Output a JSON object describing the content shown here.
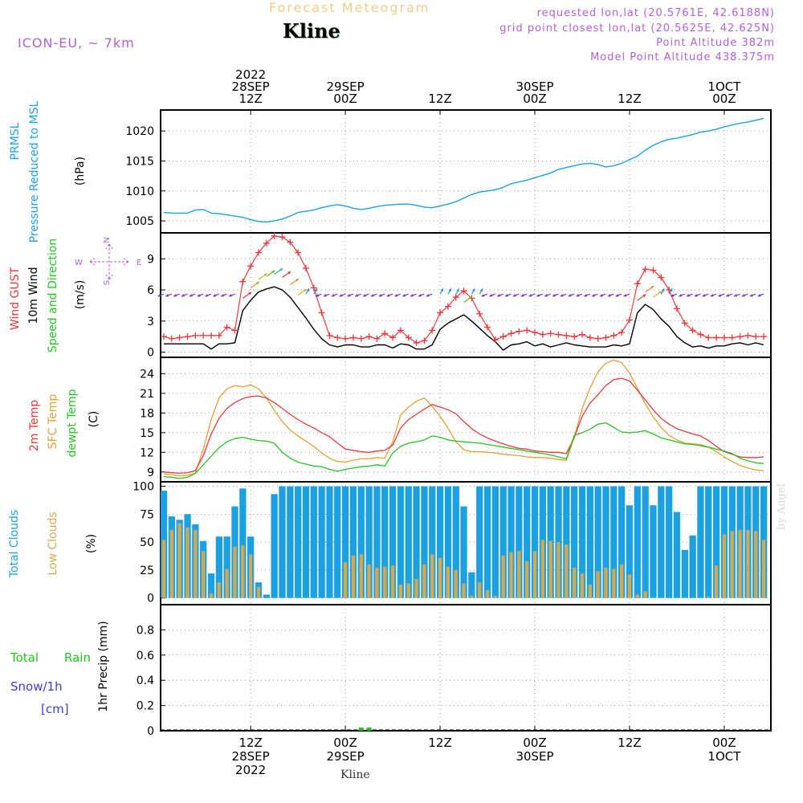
{
  "header": {
    "title": "Forecast Meteogram",
    "location": "Kline",
    "model": "ICON-EU, ~ 7km",
    "requested": "requested lon,lat (20.5761E, 42.6188N)",
    "grid_point": "grid point closest lon,lat (20.5625E, 42.625N)",
    "point_altitude": "Point Altitude 382m",
    "model_altitude": "Model Point Altitude 438.375m"
  },
  "footer": {
    "location": "Kline"
  },
  "watermark": "by Angel",
  "colors": {
    "pressure": "#1ba1e2",
    "gust": "#e8383b",
    "wind": "#000000",
    "temp2m": "#e8383b",
    "sfc_temp": "#e2a032",
    "dewpoint": "#22c422",
    "total_clouds": "#1ba1e2",
    "low_clouds": "#d4a850",
    "rain": "#22c422",
    "snow": "#3a3ae0",
    "arrows": "#7b2fd6",
    "label_purple": "#b05fd6"
  },
  "chart_data": [
    {
      "type": "line",
      "panel": "pressure",
      "ylabel": [
        "PRMSL",
        "Pressure Reduced to MSL",
        "(hPa)"
      ],
      "ylim": [
        1003,
        1023.5
      ],
      "yticks": [
        1005,
        1010,
        1015,
        1020
      ],
      "x_hours": [
        0,
        1,
        2,
        3,
        4,
        5,
        6,
        7,
        8,
        9,
        10,
        11,
        12,
        13,
        14,
        15,
        16,
        17,
        18,
        19,
        20,
        21,
        22,
        23,
        24,
        25,
        26,
        27,
        28,
        29,
        30,
        31,
        32,
        33,
        34,
        35,
        36,
        37,
        38,
        39,
        40,
        41,
        42,
        43,
        44,
        45,
        46,
        47,
        48,
        49,
        50,
        51,
        52,
        53,
        54,
        55,
        56,
        57,
        58,
        59,
        60,
        61,
        62,
        63,
        64,
        65,
        66,
        67,
        68,
        69,
        70,
        71,
        72,
        73,
        74,
        75,
        76
      ],
      "series": [
        {
          "name": "PRMSL",
          "values": [
            1006.4,
            1006.3,
            1006.3,
            1006.3,
            1006.8,
            1006.9,
            1006.3,
            1006.2,
            1006.0,
            1005.8,
            1005.6,
            1005.2,
            1004.9,
            1004.8,
            1005.0,
            1005.3,
            1005.8,
            1006.4,
            1006.6,
            1006.8,
            1007.2,
            1007.5,
            1007.7,
            1007.5,
            1007.1,
            1006.9,
            1007.1,
            1007.4,
            1007.6,
            1007.7,
            1007.8,
            1007.8,
            1007.6,
            1007.3,
            1007.2,
            1007.5,
            1007.8,
            1008.2,
            1008.8,
            1009.4,
            1009.8,
            1010.0,
            1010.2,
            1010.6,
            1011.2,
            1011.5,
            1011.8,
            1012.2,
            1012.6,
            1013.0,
            1013.6,
            1013.9,
            1014.2,
            1014.5,
            1014.6,
            1014.4,
            1014.0,
            1014.2,
            1014.6,
            1015.2,
            1015.8,
            1016.8,
            1017.6,
            1018.2,
            1018.6,
            1018.8,
            1019.1,
            1019.4,
            1019.8,
            1020.0,
            1020.3,
            1020.7,
            1021.0,
            1021.3,
            1021.5,
            1021.8,
            1022.1
          ]
        }
      ]
    },
    {
      "type": "line",
      "panel": "wind",
      "ylabel": [
        "Wind GUST",
        "10m Wind",
        "Speed and Direction",
        "(m/s)"
      ],
      "compass": {
        "north": "N",
        "south": "S",
        "west": "W",
        "east": "E"
      },
      "ylim": [
        -0.5,
        11.5
      ],
      "yticks": [
        0,
        3,
        6,
        9
      ],
      "x_hours": [
        0,
        1,
        2,
        3,
        4,
        5,
        6,
        7,
        8,
        9,
        10,
        11,
        12,
        13,
        14,
        15,
        16,
        17,
        18,
        19,
        20,
        21,
        22,
        23,
        24,
        25,
        26,
        27,
        28,
        29,
        30,
        31,
        32,
        33,
        34,
        35,
        36,
        37,
        38,
        39,
        40,
        41,
        42,
        43,
        44,
        45,
        46,
        47,
        48,
        49,
        50,
        51,
        52,
        53,
        54,
        55,
        56,
        57,
        58,
        59,
        60,
        61,
        62,
        63,
        64,
        65,
        66,
        67,
        68,
        69,
        70,
        71,
        72,
        73,
        74,
        75,
        76
      ],
      "series": [
        {
          "name": "Wind GUST",
          "values": [
            1.5,
            1.3,
            1.4,
            1.5,
            1.6,
            1.6,
            1.6,
            1.6,
            2.4,
            2.1,
            6.8,
            8.3,
            9.6,
            10.5,
            11.2,
            11.1,
            10.6,
            9.6,
            8.1,
            6.2,
            3.8,
            1.6,
            1.4,
            1.3,
            1.4,
            1.3,
            1.5,
            1.3,
            1.8,
            1.4,
            2.1,
            1.4,
            0.9,
            1.1,
            2.1,
            3.8,
            4.4,
            5.3,
            5.9,
            5.2,
            3.7,
            2.4,
            1.2,
            1.5,
            1.8,
            2.0,
            2.1,
            1.9,
            1.7,
            1.8,
            1.7,
            1.6,
            1.5,
            1.7,
            1.4,
            1.3,
            1.4,
            1.6,
            1.9,
            3.1,
            6.6,
            8.0,
            7.9,
            7.2,
            6.0,
            4.2,
            2.8,
            2.1,
            1.7,
            1.4,
            1.4,
            1.4,
            1.4,
            1.5,
            1.6,
            1.5,
            1.5
          ]
        },
        {
          "name": "10m Wind",
          "values": [
            0.8,
            0.8,
            0.8,
            0.8,
            0.8,
            0.8,
            0.3,
            0.8,
            0.8,
            0.9,
            4.0,
            5.0,
            5.8,
            6.1,
            6.3,
            6.0,
            5.3,
            4.3,
            3.3,
            2.2,
            1.3,
            0.7,
            0.5,
            0.7,
            0.7,
            0.5,
            0.5,
            0.7,
            0.7,
            0.4,
            0.8,
            0.7,
            0.3,
            0.3,
            0.7,
            2.2,
            2.8,
            3.2,
            3.6,
            3.0,
            2.3,
            1.6,
            1.0,
            0.2,
            0.7,
            0.8,
            1.0,
            0.6,
            0.8,
            0.5,
            0.7,
            0.9,
            0.7,
            0.6,
            0.5,
            0.5,
            0.5,
            0.7,
            0.6,
            0.8,
            3.8,
            4.6,
            4.1,
            3.2,
            2.5,
            1.5,
            0.9,
            0.5,
            0.6,
            0.4,
            0.6,
            0.6,
            0.8,
            0.9,
            0.7,
            0.9,
            0.7
          ]
        }
      ]
    },
    {
      "type": "line",
      "panel": "temperature",
      "ylabel": [
        "2m Temp",
        "SFC Temp",
        "dewpt Temp",
        "(C)"
      ],
      "ylim": [
        7.5,
        26.5
      ],
      "yticks": [
        9,
        12,
        15,
        18,
        21,
        24
      ],
      "x_hours": [
        0,
        1,
        2,
        3,
        4,
        5,
        6,
        7,
        8,
        9,
        10,
        11,
        12,
        13,
        14,
        15,
        16,
        17,
        18,
        19,
        20,
        21,
        22,
        23,
        24,
        25,
        26,
        27,
        28,
        29,
        30,
        31,
        32,
        33,
        34,
        35,
        36,
        37,
        38,
        39,
        40,
        41,
        42,
        43,
        44,
        45,
        46,
        47,
        48,
        49,
        50,
        51,
        52,
        53,
        54,
        55,
        56,
        57,
        58,
        59,
        60,
        61,
        62,
        63,
        64,
        65,
        66,
        67,
        68,
        69,
        70,
        71,
        72,
        73,
        74,
        75,
        76
      ],
      "series": [
        {
          "name": "2m Temp",
          "values": [
            9.0,
            8.9,
            8.8,
            8.9,
            9.2,
            11.5,
            14.8,
            17.2,
            18.7,
            19.6,
            20.2,
            20.5,
            20.6,
            20.3,
            19.6,
            18.7,
            17.8,
            17.0,
            16.3,
            15.7,
            15.0,
            14.4,
            13.4,
            12.5,
            12.3,
            12.1,
            12.0,
            12.2,
            12.3,
            13.1,
            15.7,
            17.0,
            17.8,
            18.6,
            19.3,
            18.9,
            18.5,
            17.9,
            16.7,
            15.6,
            14.8,
            14.2,
            13.7,
            13.3,
            12.9,
            12.6,
            12.5,
            12.2,
            12.1,
            12.0,
            12.0,
            11.8,
            14.3,
            17.5,
            19.5,
            20.8,
            22.2,
            23.1,
            23.3,
            22.9,
            21.5,
            20.0,
            18.5,
            17.2,
            16.3,
            15.6,
            15.2,
            14.8,
            14.5,
            13.8,
            12.9,
            12.1,
            11.7,
            11.3,
            11.2,
            11.2,
            11.3
          ]
        },
        {
          "name": "SFC Temp",
          "values": [
            8.7,
            8.6,
            8.4,
            8.5,
            8.8,
            12.5,
            17.0,
            20.3,
            21.7,
            22.2,
            22.0,
            22.3,
            21.7,
            20.3,
            18.4,
            16.7,
            15.4,
            14.5,
            13.7,
            12.9,
            11.9,
            11.1,
            10.6,
            10.5,
            10.8,
            11.0,
            11.0,
            11.2,
            11.1,
            13.6,
            17.7,
            18.9,
            19.8,
            20.3,
            19.0,
            17.5,
            15.7,
            13.6,
            12.4,
            12.1,
            12.1,
            12.0,
            11.9,
            11.7,
            11.6,
            11.5,
            11.3,
            11.2,
            11.2,
            11.1,
            10.9,
            10.8,
            14.3,
            18.7,
            21.8,
            24.3,
            25.6,
            26.1,
            25.7,
            24.1,
            21.8,
            19.4,
            17.4,
            15.8,
            14.6,
            13.9,
            13.4,
            13.3,
            13.2,
            12.8,
            12.1,
            11.3,
            10.6,
            10.0,
            9.6,
            9.3,
            9.2
          ]
        },
        {
          "name": "dewpt Temp",
          "values": [
            8.3,
            8.2,
            8.0,
            8.2,
            8.8,
            10.1,
            11.4,
            12.7,
            13.6,
            14.1,
            14.3,
            14.0,
            13.8,
            13.7,
            13.4,
            12.0,
            11.1,
            10.5,
            10.2,
            9.9,
            9.8,
            9.4,
            9.1,
            9.4,
            9.6,
            9.8,
            9.9,
            10.1,
            9.9,
            11.9,
            12.9,
            13.4,
            13.6,
            13.9,
            14.5,
            14.3,
            13.9,
            13.7,
            13.6,
            13.5,
            13.4,
            13.2,
            13.0,
            12.8,
            12.6,
            12.4,
            12.2,
            12.0,
            11.8,
            11.6,
            11.3,
            11.0,
            14.6,
            15.0,
            15.5,
            16.3,
            16.5,
            15.8,
            15.1,
            15.0,
            15.1,
            15.3,
            14.8,
            14.2,
            13.9,
            13.6,
            13.3,
            13.2,
            13.0,
            12.8,
            12.5,
            12.2,
            11.8,
            11.1,
            10.7,
            10.4,
            10.3
          ]
        }
      ]
    },
    {
      "type": "bar",
      "panel": "clouds",
      "ylabel": [
        "Total Clouds",
        "Low Clouds",
        "(%)"
      ],
      "ylim": [
        -6,
        104
      ],
      "yticks": [
        0,
        25,
        50,
        75,
        100
      ],
      "x_hours": [
        0,
        1,
        2,
        3,
        4,
        5,
        6,
        7,
        8,
        9,
        10,
        11,
        12,
        13,
        14,
        15,
        16,
        17,
        18,
        19,
        20,
        21,
        22,
        23,
        24,
        25,
        26,
        27,
        28,
        29,
        30,
        31,
        32,
        33,
        34,
        35,
        36,
        37,
        38,
        39,
        40,
        41,
        42,
        43,
        44,
        45,
        46,
        47,
        48,
        49,
        50,
        51,
        52,
        53,
        54,
        55,
        56,
        57,
        58,
        59,
        60,
        61,
        62,
        63,
        64,
        65,
        66,
        67,
        68,
        69,
        70,
        71,
        72,
        73,
        74,
        75,
        76
      ],
      "series": [
        {
          "name": "Total Clouds",
          "values": [
            96,
            73,
            70,
            75,
            66,
            51,
            22,
            55,
            55,
            82,
            98,
            55,
            14,
            3,
            93,
            100,
            100,
            100,
            100,
            100,
            100,
            100,
            100,
            100,
            100,
            100,
            100,
            100,
            100,
            100,
            100,
            100,
            100,
            100,
            100,
            100,
            100,
            100,
            82,
            23,
            100,
            100,
            100,
            100,
            100,
            100,
            100,
            100,
            100,
            100,
            100,
            100,
            100,
            100,
            100,
            100,
            100,
            100,
            100,
            83,
            100,
            100,
            83,
            100,
            100,
            77,
            43,
            56,
            100,
            100,
            100,
            100,
            100,
            100,
            100,
            100,
            100
          ]
        },
        {
          "name": "Low Clouds",
          "values": [
            52,
            61,
            67,
            63,
            61,
            42,
            4,
            14,
            26,
            46,
            47,
            39,
            10,
            0,
            0,
            0,
            0,
            0,
            0,
            0,
            0,
            0,
            0,
            32,
            38,
            39,
            30,
            27,
            28,
            29,
            12,
            13,
            17,
            30,
            39,
            36,
            28,
            25,
            13,
            2,
            14,
            7,
            2,
            38,
            41,
            42,
            33,
            42,
            52,
            51,
            50,
            48,
            27,
            22,
            12,
            24,
            27,
            26,
            30,
            21,
            3,
            6,
            0,
            0,
            0,
            0,
            0,
            0,
            0,
            1,
            29,
            57,
            60,
            61,
            61,
            60,
            52
          ]
        }
      ]
    },
    {
      "type": "bar",
      "panel": "precip",
      "ylabel": [
        "1hr Precip (mm)"
      ],
      "legend": {
        "rain_total": "Total",
        "rain": "Rain",
        "snow": "Snow/1h",
        "snow_unit": "[cm]"
      },
      "ylim": [
        0,
        1.0
      ],
      "yticks": [
        0,
        0.2,
        0.4,
        0.6,
        0.8
      ],
      "x_hours": [
        25,
        26
      ],
      "series": [
        {
          "name": "Rain",
          "values": [
            0.01,
            0.01
          ]
        }
      ]
    }
  ],
  "time_axis": {
    "x_range_hours": [
      0,
      76.5
    ],
    "top": [
      {
        "hour": 11,
        "lines": [
          "2022",
          "28SEP",
          "12Z"
        ]
      },
      {
        "hour": 23,
        "lines": [
          "29SEP",
          "00Z"
        ]
      },
      {
        "hour": 35,
        "lines": [
          "12Z"
        ]
      },
      {
        "hour": 47,
        "lines": [
          "30SEP",
          "00Z"
        ]
      },
      {
        "hour": 59,
        "lines": [
          "12Z"
        ]
      },
      {
        "hour": 71,
        "lines": [
          "1OCT",
          "00Z"
        ]
      }
    ],
    "bottom": [
      {
        "hour": 11,
        "lines": [
          "12Z",
          "28SEP",
          "2022"
        ]
      },
      {
        "hour": 23,
        "lines": [
          "00Z",
          "29SEP"
        ]
      },
      {
        "hour": 35,
        "lines": [
          "12Z"
        ]
      },
      {
        "hour": 47,
        "lines": [
          "00Z",
          "30SEP"
        ]
      },
      {
        "hour": 59,
        "lines": [
          "12Z"
        ]
      },
      {
        "hour": 71,
        "lines": [
          "00Z",
          "1OCT"
        ]
      }
    ]
  }
}
